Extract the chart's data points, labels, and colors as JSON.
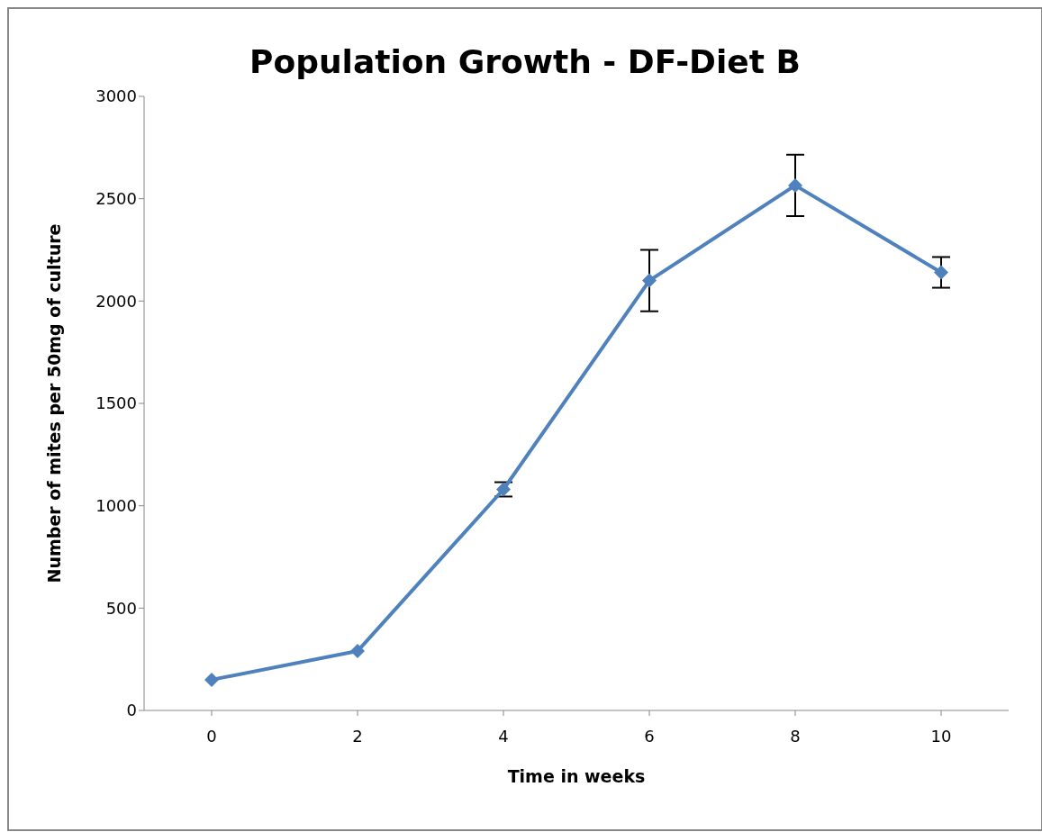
{
  "chart_data": {
    "type": "line",
    "title": "Population Growth - DF-Diet B",
    "xlabel": "Time in weeks",
    "ylabel": "Number of mites per 50mg of culture",
    "categories": [
      "0",
      "2",
      "4",
      "6",
      "8",
      "10"
    ],
    "series": [
      {
        "color": "#4f81bd",
        "values": [
          150,
          290,
          1080,
          2100,
          2565,
          2140
        ],
        "errors": [
          null,
          null,
          35,
          150,
          150,
          75
        ]
      }
    ],
    "ylim": [
      0,
      3000
    ],
    "yticks": [
      0,
      500,
      1000,
      1500,
      2000,
      2500,
      3000
    ],
    "grid": false,
    "legend": false,
    "marker": "diamond",
    "line_style": "solid"
  }
}
